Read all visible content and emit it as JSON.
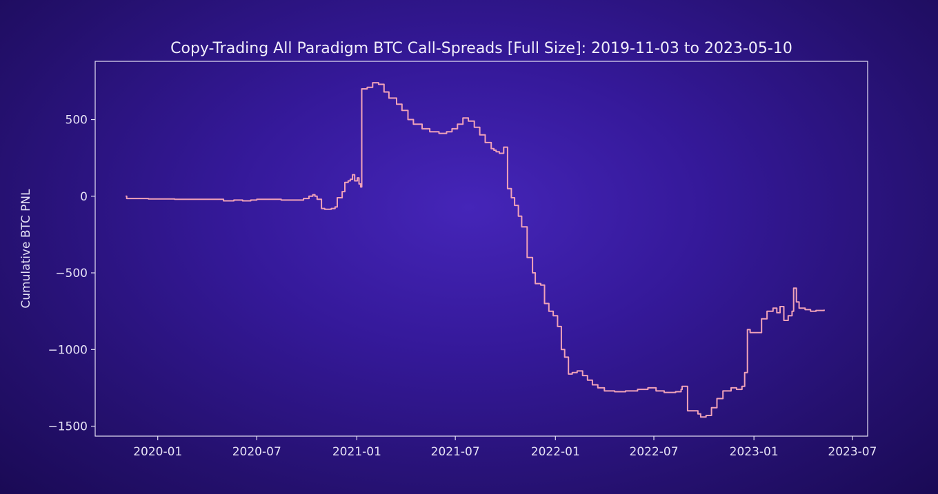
{
  "chart_data": {
    "type": "line",
    "title": "Copy-Trading All Paradigm BTC Call-Spreads [Full Size]: 2019-11-03 to 2023-05-10",
    "xlabel": "",
    "ylabel": "Cumulative BTC PNL",
    "xlim": [
      "2019-09-08",
      "2023-07-29"
    ],
    "ylim": [
      -1565,
      880
    ],
    "x_ticks": [
      "2020-01",
      "2020-07",
      "2021-01",
      "2021-07",
      "2022-01",
      "2022-07",
      "2023-01",
      "2023-07"
    ],
    "y_ticks": [
      500,
      0,
      -500,
      -1000,
      -1500
    ],
    "y_tick_labels": [
      "500",
      "0",
      "−500",
      "−1000",
      "−1500"
    ],
    "line_color": "#f0a2b8",
    "grid": false,
    "series": [
      {
        "x": [
          "2019-11-03",
          "2019-11-05",
          "2019-12-15",
          "2020-02-01",
          "2020-03-15",
          "2020-04-20",
          "2020-05-01",
          "2020-05-20",
          "2020-06-05",
          "2020-06-20",
          "2020-07-01",
          "2020-08-15",
          "2020-09-10",
          "2020-09-25",
          "2020-10-05",
          "2020-10-12",
          "2020-10-16",
          "2020-10-20",
          "2020-10-28",
          "2020-11-03",
          "2020-11-10",
          "2020-11-15",
          "2020-11-22",
          "2020-11-26",
          "2020-12-05",
          "2020-12-10",
          "2020-12-16",
          "2020-12-20",
          "2020-12-24",
          "2020-12-28",
          "2021-01-02",
          "2021-01-05",
          "2021-01-08",
          "2021-01-10",
          "2021-01-20",
          "2021-01-30",
          "2021-02-10",
          "2021-02-20",
          "2021-03-01",
          "2021-03-15",
          "2021-03-25",
          "2021-04-05",
          "2021-04-15",
          "2021-05-01",
          "2021-05-15",
          "2021-06-01",
          "2021-06-15",
          "2021-06-25",
          "2021-07-05",
          "2021-07-15",
          "2021-07-25",
          "2021-08-05",
          "2021-08-15",
          "2021-08-25",
          "2021-09-05",
          "2021-09-10",
          "2021-09-14",
          "2021-09-20",
          "2021-09-28",
          "2021-10-05",
          "2021-10-12",
          "2021-10-18",
          "2021-10-25",
          "2021-10-31",
          "2021-11-10",
          "2021-11-20",
          "2021-11-25",
          "2021-12-05",
          "2021-12-12",
          "2021-12-20",
          "2021-12-28",
          "2022-01-05",
          "2022-01-12",
          "2022-01-18",
          "2022-01-25",
          "2022-02-01",
          "2022-02-10",
          "2022-02-20",
          "2022-03-01",
          "2022-03-10",
          "2022-03-20",
          "2022-04-01",
          "2022-04-20",
          "2022-05-10",
          "2022-06-01",
          "2022-06-20",
          "2022-07-05",
          "2022-07-20",
          "2022-08-10",
          "2022-08-20",
          "2022-08-22",
          "2022-09-01",
          "2022-09-20",
          "2022-09-25",
          "2022-10-05",
          "2022-10-15",
          "2022-10-25",
          "2022-11-05",
          "2022-11-20",
          "2022-11-30",
          "2022-12-10",
          "2022-12-15",
          "2022-12-20",
          "2022-12-25",
          "2023-01-05",
          "2023-01-15",
          "2023-01-25",
          "2023-02-05",
          "2023-02-12",
          "2023-02-18",
          "2023-02-25",
          "2023-03-05",
          "2023-03-12",
          "2023-03-15",
          "2023-03-20",
          "2023-03-25",
          "2023-04-05",
          "2023-04-15",
          "2023-04-25",
          "2023-05-10"
        ],
        "y": [
          0,
          -15,
          -18,
          -20,
          -20,
          -20,
          -30,
          -25,
          -30,
          -25,
          -20,
          -25,
          -25,
          -15,
          0,
          10,
          0,
          -20,
          -80,
          -85,
          -85,
          -80,
          -70,
          -10,
          30,
          90,
          100,
          110,
          140,
          100,
          120,
          80,
          60,
          700,
          710,
          740,
          730,
          680,
          640,
          600,
          560,
          500,
          470,
          440,
          420,
          410,
          420,
          440,
          470,
          510,
          490,
          450,
          400,
          350,
          310,
          300,
          290,
          280,
          320,
          50,
          -10,
          -60,
          -130,
          -200,
          -400,
          -500,
          -570,
          -580,
          -700,
          -750,
          -780,
          -850,
          -1000,
          -1050,
          -1160,
          -1150,
          -1140,
          -1170,
          -1200,
          -1230,
          -1250,
          -1270,
          -1275,
          -1270,
          -1260,
          -1250,
          -1270,
          -1280,
          -1275,
          -1260,
          -1240,
          -1400,
          -1420,
          -1440,
          -1430,
          -1380,
          -1320,
          -1270,
          -1250,
          -1260,
          -1240,
          -1150,
          -870,
          -890,
          -890,
          -800,
          -750,
          -730,
          -760,
          -720,
          -810,
          -780,
          -750,
          -600,
          -690,
          -730,
          -740,
          -750,
          -745,
          -740
        ]
      }
    ]
  }
}
